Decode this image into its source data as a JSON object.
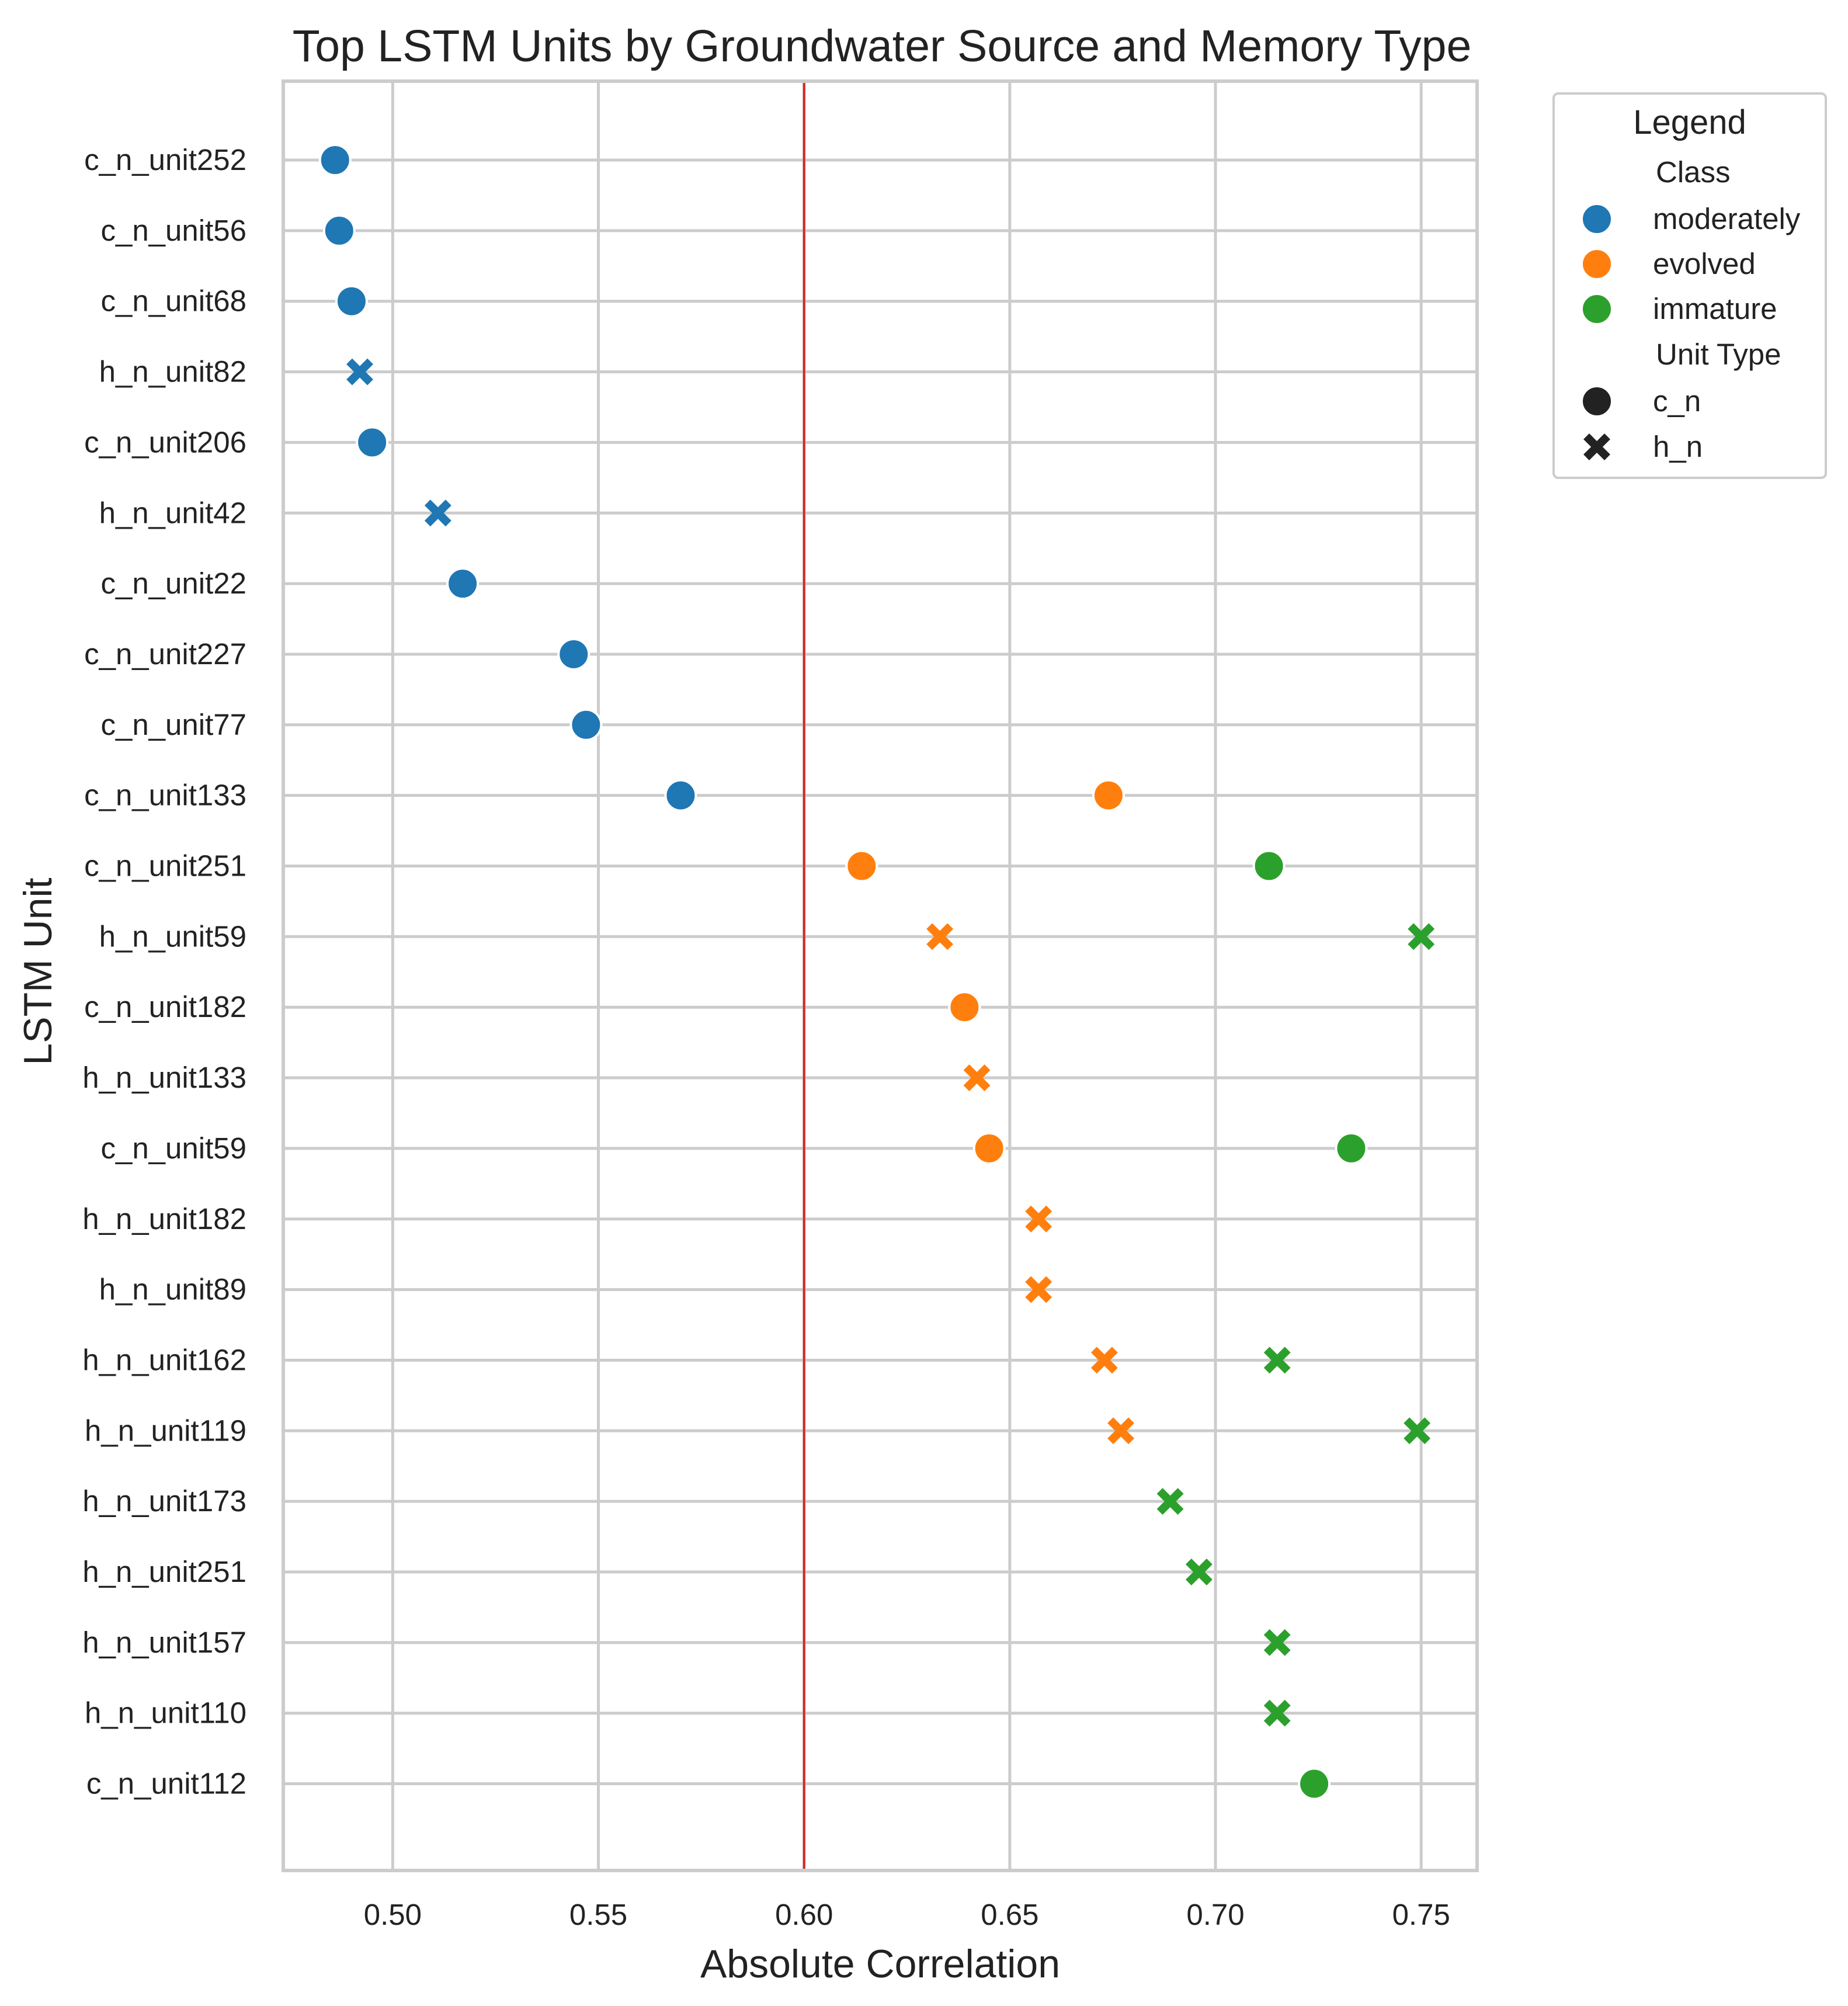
{
  "chart_data": {
    "type": "scatter",
    "title": "Top LSTM Units by Groundwater Source and Memory Type",
    "xlabel": "Absolute Correlation",
    "ylabel": "LSTM Unit",
    "xlim": [
      0.4734,
      0.7636
    ],
    "xticks": [
      0.5,
      0.55,
      0.6,
      0.65,
      0.7,
      0.75
    ],
    "xtick_labels": [
      "0.50",
      "0.55",
      "0.60",
      "0.65",
      "0.70",
      "0.75"
    ],
    "categories": [
      "c_n_unit252",
      "c_n_unit56",
      "c_n_unit68",
      "h_n_unit82",
      "c_n_unit206",
      "h_n_unit42",
      "c_n_unit22",
      "c_n_unit227",
      "c_n_unit77",
      "c_n_unit133",
      "c_n_unit251",
      "h_n_unit59",
      "c_n_unit182",
      "h_n_unit133",
      "c_n_unit59",
      "h_n_unit182",
      "h_n_unit89",
      "h_n_unit162",
      "h_n_unit119",
      "h_n_unit173",
      "h_n_unit251",
      "h_n_unit157",
      "h_n_unit110",
      "c_n_unit112"
    ],
    "reference_line": {
      "x": 0.6,
      "color": "#d62728"
    },
    "grid": true,
    "legend_position": "outside-top-right",
    "series": [
      {
        "name": "moderately",
        "color": "#1f77b4",
        "points": [
          {
            "unit": "c_n_unit252",
            "value": 0.486,
            "type": "c_n"
          },
          {
            "unit": "c_n_unit56",
            "value": 0.487,
            "type": "c_n"
          },
          {
            "unit": "c_n_unit68",
            "value": 0.49,
            "type": "c_n"
          },
          {
            "unit": "h_n_unit82",
            "value": 0.492,
            "type": "h_n"
          },
          {
            "unit": "c_n_unit206",
            "value": 0.495,
            "type": "c_n"
          },
          {
            "unit": "h_n_unit42",
            "value": 0.511,
            "type": "h_n"
          },
          {
            "unit": "c_n_unit22",
            "value": 0.517,
            "type": "c_n"
          },
          {
            "unit": "c_n_unit227",
            "value": 0.544,
            "type": "c_n"
          },
          {
            "unit": "c_n_unit77",
            "value": 0.547,
            "type": "c_n"
          },
          {
            "unit": "c_n_unit133",
            "value": 0.57,
            "type": "c_n"
          }
        ]
      },
      {
        "name": "evolved",
        "color": "#ff7f0e",
        "points": [
          {
            "unit": "c_n_unit133",
            "value": 0.674,
            "type": "c_n"
          },
          {
            "unit": "c_n_unit251",
            "value": 0.614,
            "type": "c_n"
          },
          {
            "unit": "h_n_unit59",
            "value": 0.633,
            "type": "h_n"
          },
          {
            "unit": "c_n_unit182",
            "value": 0.639,
            "type": "c_n"
          },
          {
            "unit": "h_n_unit133",
            "value": 0.642,
            "type": "h_n"
          },
          {
            "unit": "c_n_unit59",
            "value": 0.645,
            "type": "c_n"
          },
          {
            "unit": "h_n_unit182",
            "value": 0.657,
            "type": "h_n"
          },
          {
            "unit": "h_n_unit89",
            "value": 0.657,
            "type": "h_n"
          },
          {
            "unit": "h_n_unit162",
            "value": 0.673,
            "type": "h_n"
          },
          {
            "unit": "h_n_unit119",
            "value": 0.677,
            "type": "h_n"
          }
        ]
      },
      {
        "name": "immature",
        "color": "#2ca02c",
        "points": [
          {
            "unit": "c_n_unit251",
            "value": 0.713,
            "type": "c_n"
          },
          {
            "unit": "h_n_unit59",
            "value": 0.75,
            "type": "h_n"
          },
          {
            "unit": "c_n_unit59",
            "value": 0.733,
            "type": "c_n"
          },
          {
            "unit": "h_n_unit162",
            "value": 0.715,
            "type": "h_n"
          },
          {
            "unit": "h_n_unit119",
            "value": 0.749,
            "type": "h_n"
          },
          {
            "unit": "h_n_unit173",
            "value": 0.689,
            "type": "h_n"
          },
          {
            "unit": "h_n_unit251",
            "value": 0.696,
            "type": "h_n"
          },
          {
            "unit": "h_n_unit157",
            "value": 0.715,
            "type": "h_n"
          },
          {
            "unit": "h_n_unit110",
            "value": 0.715,
            "type": "h_n"
          },
          {
            "unit": "c_n_unit112",
            "value": 0.724,
            "type": "c_n"
          }
        ]
      }
    ],
    "legend": {
      "title": "Legend",
      "class_heading": "Class",
      "classes": [
        {
          "label": "moderately",
          "color": "#1f77b4"
        },
        {
          "label": "evolved",
          "color": "#ff7f0e"
        },
        {
          "label": "immature",
          "color": "#2ca02c"
        }
      ],
      "type_heading": "Unit Type",
      "types": [
        {
          "label": "c_n",
          "marker": "circle-icon"
        },
        {
          "label": "h_n",
          "marker": "cross-icon"
        }
      ]
    }
  }
}
